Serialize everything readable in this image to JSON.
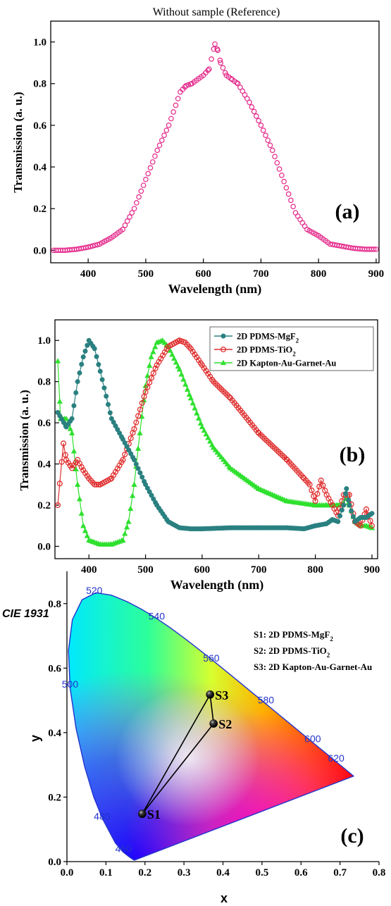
{
  "panel_a": {
    "top_title": "Without sample (Reference)",
    "panel_label": "(a)"
  },
  "panel_b": {
    "panel_label": "(b)"
  },
  "panel_c": {
    "header": "CIE 1931",
    "panel_label": "(c)"
  },
  "chart_data": [
    {
      "type": "scatter",
      "title": "Without sample (Reference)",
      "xlabel": "Wavelength (nm)",
      "ylabel": "Transmission (a. u.)",
      "xlim": [
        335,
        905
      ],
      "ylim": [
        -0.06,
        1.1
      ],
      "xticks": [
        400,
        500,
        600,
        700,
        800,
        900
      ],
      "yticks": [
        0.0,
        0.2,
        0.4,
        0.6,
        0.8,
        1.0
      ],
      "grid": false,
      "color": "#e4278a",
      "marker": "open-circle",
      "series": [
        {
          "x": [
            340,
            360,
            380,
            400,
            420,
            440,
            460,
            480,
            500,
            520,
            540,
            560,
            570,
            580,
            600,
            610,
            620,
            625,
            630,
            640,
            650,
            660,
            680,
            700,
            720,
            740,
            760,
            780,
            800,
            820,
            840,
            860,
            880,
            900
          ],
          "values": [
            0.0,
            0.0,
            0.005,
            0.015,
            0.03,
            0.06,
            0.1,
            0.2,
            0.34,
            0.48,
            0.6,
            0.76,
            0.79,
            0.8,
            0.84,
            0.87,
            0.99,
            0.96,
            0.9,
            0.84,
            0.82,
            0.8,
            0.71,
            0.6,
            0.48,
            0.33,
            0.18,
            0.1,
            0.07,
            0.03,
            0.02,
            0.01,
            0.005,
            0.005
          ]
        }
      ]
    },
    {
      "type": "line",
      "xlabel": "Wavelength (nm)",
      "ylabel": "Transmission (a. u.)",
      "xlim": [
        340,
        910
      ],
      "ylim": [
        -0.06,
        1.1
      ],
      "xticks": [
        400,
        500,
        600,
        700,
        800,
        900
      ],
      "yticks": [
        0.0,
        0.2,
        0.4,
        0.6,
        0.8,
        1.0
      ],
      "grid": false,
      "legend": "top-right",
      "series": [
        {
          "name": "2D PDMS-MgF2",
          "color": "#2a8080",
          "marker": "filled-circle",
          "x": [
            345,
            360,
            370,
            380,
            390,
            400,
            410,
            420,
            440,
            460,
            480,
            500,
            520,
            540,
            560,
            580,
            600,
            650,
            700,
            750,
            780,
            800,
            820,
            830,
            840,
            850,
            855,
            860,
            870,
            880,
            890,
            900
          ],
          "values": [
            0.65,
            0.58,
            0.62,
            0.8,
            0.92,
            1.0,
            0.96,
            0.85,
            0.62,
            0.52,
            0.42,
            0.3,
            0.2,
            0.12,
            0.09,
            0.085,
            0.085,
            0.09,
            0.09,
            0.09,
            0.085,
            0.1,
            0.11,
            0.13,
            0.12,
            0.2,
            0.28,
            0.2,
            0.12,
            0.14,
            0.14,
            0.16
          ]
        },
        {
          "name": "2D PDMS-TiO2",
          "color": "#e03030",
          "marker": "open-circle",
          "x": [
            345,
            355,
            360,
            370,
            380,
            390,
            400,
            410,
            420,
            440,
            460,
            480,
            500,
            520,
            540,
            560,
            570,
            580,
            600,
            620,
            650,
            700,
            750,
            780,
            790,
            800,
            810,
            820,
            830,
            840,
            850,
            860,
            870,
            880,
            890,
            900
          ],
          "values": [
            0.2,
            0.5,
            0.42,
            0.38,
            0.42,
            0.37,
            0.33,
            0.3,
            0.3,
            0.33,
            0.42,
            0.57,
            0.75,
            0.88,
            0.97,
            1.0,
            0.99,
            0.96,
            0.88,
            0.8,
            0.72,
            0.55,
            0.42,
            0.33,
            0.3,
            0.22,
            0.32,
            0.25,
            0.2,
            0.15,
            0.25,
            0.25,
            0.12,
            0.1,
            0.18,
            0.1
          ]
        },
        {
          "name": "2D Kapton-Au-Garnet-Au",
          "color": "#2fe02f",
          "marker": "filled-triangle",
          "x": [
            345,
            350,
            360,
            370,
            380,
            390,
            400,
            410,
            420,
            440,
            460,
            470,
            480,
            490,
            500,
            510,
            520,
            530,
            540,
            560,
            580,
            600,
            620,
            650,
            700,
            750,
            800,
            820,
            840,
            850,
            855,
            860,
            870,
            880,
            890,
            900
          ],
          "values": [
            0.9,
            0.62,
            0.62,
            0.55,
            0.3,
            0.1,
            0.03,
            0.02,
            0.01,
            0.01,
            0.03,
            0.12,
            0.3,
            0.55,
            0.78,
            0.92,
            0.99,
            1.0,
            0.97,
            0.86,
            0.72,
            0.58,
            0.48,
            0.38,
            0.28,
            0.22,
            0.2,
            0.2,
            0.2,
            0.21,
            0.24,
            0.2,
            0.12,
            0.1,
            0.1,
            0.09
          ]
        }
      ]
    },
    {
      "type": "scatter",
      "title": "CIE 1931",
      "xlabel": "x",
      "ylabel": "y",
      "xlim": [
        0.0,
        0.8
      ],
      "ylim": [
        0.0,
        0.9
      ],
      "xticks": [
        0.0,
        0.1,
        0.2,
        0.3,
        0.4,
        0.5,
        0.6,
        0.7,
        0.8
      ],
      "yticks": [
        0.0,
        0.2,
        0.4,
        0.6,
        0.8
      ],
      "legend": "top-right",
      "legend_entries": [
        "S1: 2D PDMS-MgF2",
        "S2: 2D PDMS-TiO2",
        "S3: 2D Kapton-Au-Garnet-Au"
      ],
      "points": [
        {
          "label": "S1",
          "x": 0.193,
          "y": 0.148
        },
        {
          "label": "S2",
          "x": 0.376,
          "y": 0.428
        },
        {
          "label": "S3",
          "x": 0.367,
          "y": 0.518
        }
      ],
      "wavelength_labels": [
        {
          "label": "460",
          "x": 0.145,
          "y": 0.03
        },
        {
          "label": "480",
          "x": 0.09,
          "y": 0.13
        },
        {
          "label": "500",
          "x": 0.008,
          "y": 0.54
        },
        {
          "label": "520",
          "x": 0.07,
          "y": 0.83
        },
        {
          "label": "540",
          "x": 0.23,
          "y": 0.75
        },
        {
          "label": "560",
          "x": 0.37,
          "y": 0.62
        },
        {
          "label": "580",
          "x": 0.51,
          "y": 0.49
        },
        {
          "label": "600",
          "x": 0.63,
          "y": 0.37
        },
        {
          "label": "620",
          "x": 0.69,
          "y": 0.31
        }
      ],
      "locus_color": "#2233cc"
    }
  ]
}
